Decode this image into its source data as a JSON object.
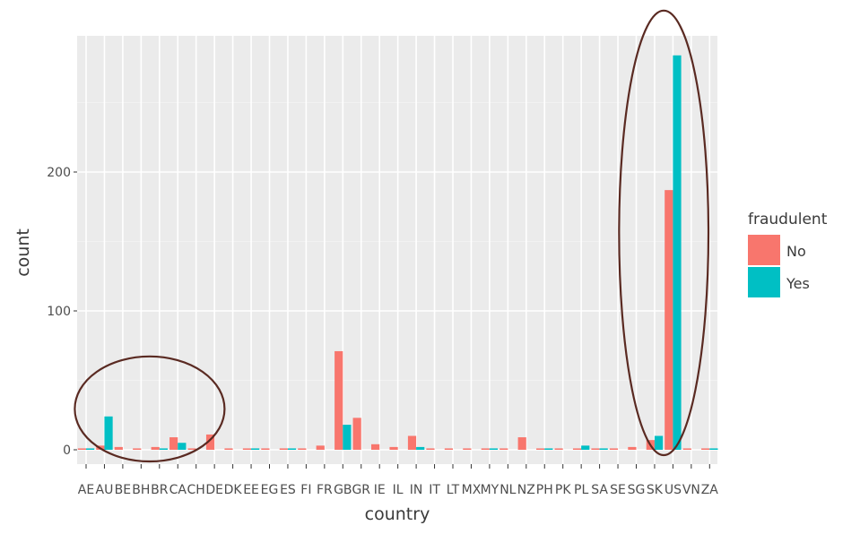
{
  "chart_data": {
    "type": "bar",
    "xlabel": "country",
    "ylabel": "count",
    "ylim": [
      0,
      295
    ],
    "yticks": [
      0,
      100,
      200
    ],
    "grid": true,
    "legend": {
      "title": "fraudulent",
      "position": "right"
    },
    "categories": [
      "AE",
      "AU",
      "BE",
      "BH",
      "BR",
      "CA",
      "CH",
      "DE",
      "DK",
      "EE",
      "EG",
      "ES",
      "FI",
      "FR",
      "GB",
      "GR",
      "IE",
      "IL",
      "IN",
      "IT",
      "LT",
      "MX",
      "MY",
      "NL",
      "NZ",
      "PH",
      "PK",
      "PL",
      "SA",
      "SE",
      "SG",
      "SK",
      "US",
      "VN",
      "ZA"
    ],
    "series": [
      {
        "name": "No",
        "color": "#f8766d",
        "values": [
          1,
          3,
          2,
          1,
          2,
          9,
          1,
          11,
          1,
          1,
          1,
          1,
          1,
          3,
          71,
          23,
          4,
          2,
          10,
          1,
          1,
          1,
          1,
          1,
          9,
          1,
          1,
          1,
          1,
          1,
          2,
          7,
          187,
          1,
          1
        ]
      },
      {
        "name": "Yes",
        "color": "#00bfc4",
        "values": [
          1,
          24,
          0,
          0,
          1,
          5,
          0,
          0,
          0,
          1,
          0,
          1,
          0,
          0,
          18,
          0,
          0,
          0,
          2,
          0,
          0,
          0,
          1,
          0,
          0,
          1,
          0,
          3,
          1,
          0,
          0,
          10,
          284,
          0,
          1
        ]
      }
    ]
  },
  "annotations": [
    {
      "shape": "ellipse",
      "color": "#5a2a22",
      "around": [
        "AE",
        "AU",
        "BE",
        "BH",
        "BR"
      ]
    },
    {
      "shape": "ellipse",
      "color": "#5a2a22",
      "around": [
        "SK",
        "US"
      ]
    }
  ]
}
